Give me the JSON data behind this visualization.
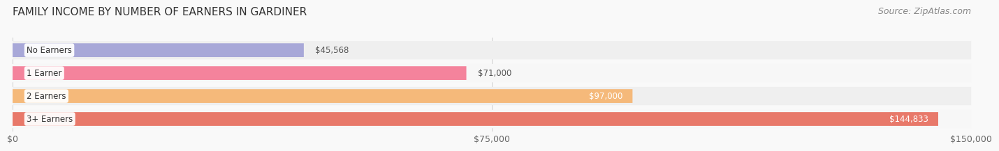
{
  "title": "FAMILY INCOME BY NUMBER OF EARNERS IN GARDINER",
  "source": "Source: ZipAtlas.com",
  "categories": [
    "No Earners",
    "1 Earner",
    "2 Earners",
    "3+ Earners"
  ],
  "values": [
    45568,
    71000,
    97000,
    144833
  ],
  "labels": [
    "$45,568",
    "$71,000",
    "$97,000",
    "$144,833"
  ],
  "bar_colors": [
    "#a8a8d8",
    "#f4839c",
    "#f5b97a",
    "#e8796a"
  ],
  "label_outside": [
    true,
    true,
    false,
    false
  ],
  "label_text_colors_outside": [
    "#555555",
    "#555555",
    "#555555",
    "#555555"
  ],
  "bg_colors": [
    "#efefef",
    "#f7f7f7",
    "#efefef",
    "#f7f7f7"
  ],
  "xlim": [
    0,
    150000
  ],
  "xticks": [
    0,
    75000,
    150000
  ],
  "xticklabels": [
    "$0",
    "$75,000",
    "$150,000"
  ],
  "title_fontsize": 11,
  "source_fontsize": 9,
  "label_fontsize": 8.5,
  "tick_fontsize": 9,
  "bar_height": 0.6,
  "background_color": "#f9f9f9"
}
